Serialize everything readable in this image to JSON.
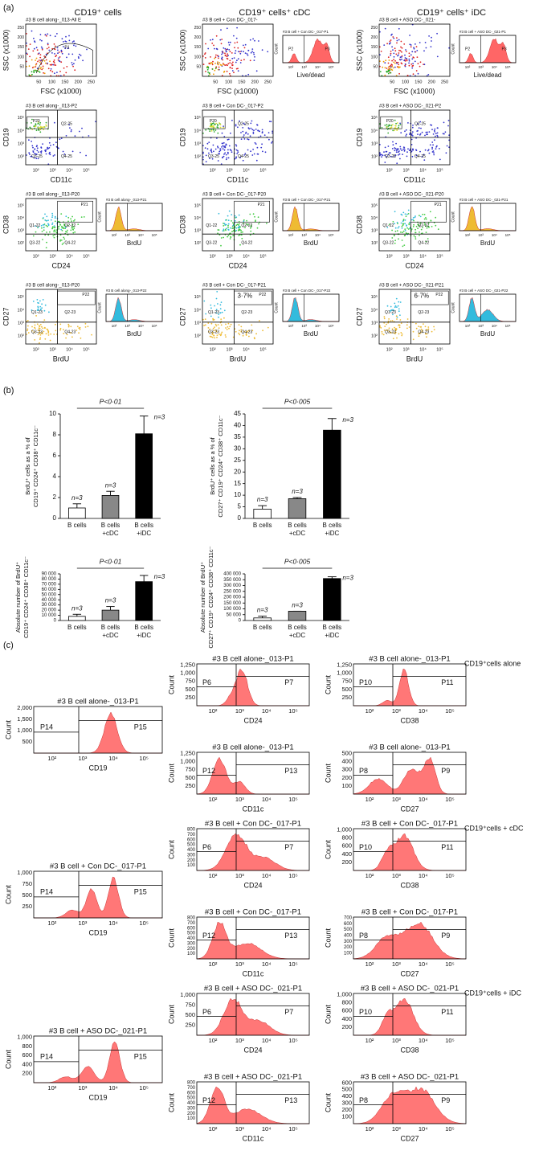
{
  "log_ticks": [
    "10²",
    "10³",
    "10⁴",
    "10⁵"
  ],
  "panel_a": {
    "label": "(a)",
    "columns": [
      "CD19⁺ cells",
      "CD19⁺ cells⁺ cDC",
      "CD19⁺ cells⁺ iDC"
    ],
    "scatter_ticks": [
      50,
      100,
      150,
      200,
      250
    ],
    "rows": [
      [
        {
          "dot": {
            "title": "#3 B cell along-_013-All E",
            "x_label": "FSC (x1000)",
            "y_label": "SSC (x1000)",
            "gates": [
              "P1"
            ]
          }
        },
        {
          "dot": {
            "title": "#3 B cell + Con DC-_017-",
            "x_label": "FSC (x1000)",
            "y_label": "SSC (x1000)"
          },
          "hist": {
            "title": "#3 B cell + Con DC-_017-P1",
            "x_label": "Live/dead",
            "y_label": "Count",
            "gates": [
              "P2",
              "P3"
            ]
          }
        },
        {
          "dot": {
            "title": "#3 B cell + ASO DC-_021-",
            "x_label": "FSC (x1000)",
            "y_label": "SSC (x1000)"
          },
          "hist": {
            "title": "#3 B cell + ASO DC-_021-P1",
            "x_label": "Live/dead",
            "y_label": "Count",
            "gates": [
              "P2",
              "P3"
            ]
          }
        }
      ],
      [
        {
          "dot": {
            "title": "#3 B cell along-_013-P2",
            "x_label": "CD11c",
            "y_label": "CD19",
            "gates": [
              "P20",
              "Q2-25",
              "Q3-25",
              "Q4-25"
            ]
          }
        },
        {
          "dot": {
            "title": "#3 B cell + Con DC-_017-P2",
            "x_label": "CD11c",
            "y_label": "CD19",
            "gates": [
              "P20",
              "Q2-25",
              "Q3-25",
              "Q4-25"
            ]
          }
        },
        {
          "dot": {
            "title": "#3 B cell + ASO DC-_021-P2",
            "x_label": "CD11c",
            "y_label": "CD19",
            "gates": [
              "P20",
              "Q2-25",
              "Q3-25",
              "Q4-25"
            ]
          }
        }
      ],
      [
        {
          "dot": {
            "title": "#3 B cell along-_013-P20",
            "x_label": "CD24",
            "y_label": "CD38",
            "gates": [
              "P21",
              "Q1-22",
              "Q2-22",
              "Q3-22",
              "Q4-22"
            ]
          },
          "hist": {
            "title": "#3 B cell along-_013-P21",
            "x_label": "BrdU",
            "y_label": "Count"
          }
        },
        {
          "dot": {
            "title": "#3 B cell + Con DC-_017-P20",
            "x_label": "CD24",
            "y_label": "CD38",
            "gates": [
              "P21",
              "Q1-22",
              "Q2-22",
              "Q3-22",
              "Q4-22"
            ]
          },
          "hist": {
            "title": "#3 B cell + Con DC-_017-P21",
            "x_label": "BrdU",
            "y_label": "Count"
          }
        },
        {
          "dot": {
            "title": "#3 B cell + ASO DC-_021-P20",
            "x_label": "CD24",
            "y_label": "CD38",
            "gates": [
              "P21",
              "Q1-22",
              "Q2-22",
              "Q3-22",
              "Q4-22"
            ]
          },
          "hist": {
            "title": "#3 B cell + ASO DC-_021-P21",
            "x_label": "BrdU",
            "y_label": "Count"
          }
        }
      ],
      [
        {
          "dot": {
            "title": "#3 B cell along-_013-P20",
            "x_label": "BrdU",
            "y_label": "CD27",
            "gates": [
              "P22",
              "Q1-23",
              "Q2-23",
              "Q3-23",
              "Q4-23"
            ]
          },
          "hist": {
            "title": "#3 B cell along-_013-P22",
            "x_label": "BrdU",
            "y_label": "Count"
          }
        },
        {
          "dot": {
            "title": "#3 B cell + Con DC-_017-P21",
            "x_label": "BrdU",
            "y_label": "CD27",
            "gates": [
              "P22",
              "Q1-23",
              "Q2-23",
              "Q3-23",
              "Q4-23"
            ],
            "pct": "3·7%"
          },
          "hist": {
            "title": "#3 B cell + Con DC-_017-P22",
            "x_label": "BrdU",
            "y_label": "Count"
          }
        },
        {
          "dot": {
            "title": "#3 B cell + ASO DC-_021-P21",
            "x_label": "BrdU",
            "y_label": "CD27",
            "gates": [
              "P22",
              "Q1-23",
              "Q2-23",
              "Q3-23",
              "Q4-23"
            ],
            "pct": "6·7%"
          },
          "hist": {
            "title": "#3 B cell + ASO DC-_021-P22",
            "x_label": "BrdU",
            "y_label": "Count"
          }
        }
      ]
    ]
  },
  "panel_b": {
    "label": "(b)"
  },
  "chart_data": [
    {
      "type": "bar",
      "y_label": [
        "BrdU⁺ cells as a % of",
        "CD19⁺ CD24⁺ CD38⁺ CD11c⁻"
      ],
      "categories": [
        [
          "B cells"
        ],
        [
          "B cells",
          "+cDC"
        ],
        [
          "B cells",
          "+iDC"
        ]
      ],
      "values": [
        1.0,
        2.2,
        8.1
      ],
      "errors": [
        0.4,
        0.4,
        1.7
      ],
      "colors": [
        "#ffffff",
        "#888888",
        "#000000"
      ],
      "n_labels": [
        "n=3",
        "n=3",
        "n=3"
      ],
      "annotation": "P<0·01",
      "ylim": [
        0,
        10
      ],
      "yticks": [
        0,
        2,
        4,
        6,
        8,
        10
      ]
    },
    {
      "type": "bar",
      "y_label": [
        "BrdU⁺ cells as a % of",
        "CD27⁺ CD19⁺ CD24⁺ CD38⁺ CD11c⁻"
      ],
      "categories": [
        [
          "B cells"
        ],
        [
          "B cells",
          "+cDC"
        ],
        [
          "B cells",
          "+iDC"
        ]
      ],
      "values": [
        4,
        8.5,
        38
      ],
      "errors": [
        1.5,
        0.5,
        5
      ],
      "colors": [
        "#ffffff",
        "#888888",
        "#000000"
      ],
      "n_labels": [
        "n=3",
        "n=3",
        "n=3"
      ],
      "annotation": "P<0·005",
      "ylim": [
        0,
        45
      ],
      "yticks": [
        0,
        5,
        10,
        15,
        20,
        25,
        30,
        35,
        40,
        45
      ]
    },
    {
      "type": "bar",
      "y_label": [
        "Absolute number of BrdU⁺",
        "CD19⁺ CD24⁺ CD38⁺ CD11c⁻"
      ],
      "categories": [
        [
          "B cells"
        ],
        [
          "B cells",
          "+cDC"
        ],
        [
          "B cells",
          "+iDC"
        ]
      ],
      "values": [
        8000,
        20000,
        75000
      ],
      "errors": [
        4000,
        7000,
        12000
      ],
      "colors": [
        "#ffffff",
        "#888888",
        "#000000"
      ],
      "n_labels": [
        "n=3",
        "n=3",
        "n=3"
      ],
      "annotation": "P<0·01",
      "ylim": [
        0,
        90000
      ],
      "yticks": [
        0,
        {
          "value": 10000,
          "label": "10 000"
        },
        {
          "value": 20000,
          "label": "20 000"
        },
        {
          "value": 30000,
          "label": "30 000"
        },
        {
          "value": 40000,
          "label": "40 000"
        },
        {
          "value": 50000,
          "label": "50 000"
        },
        {
          "value": 60000,
          "label": "60 000"
        },
        {
          "value": 70000,
          "label": "70 000"
        },
        {
          "value": 80000,
          "label": "80 000"
        },
        {
          "value": 90000,
          "label": "90 000"
        }
      ]
    },
    {
      "type": "bar",
      "y_label": [
        "Absolute number of BrdU⁺",
        "CD27⁺ CD19⁺ CD24⁺ CD38⁺ CD11c⁻"
      ],
      "categories": [
        [
          "B cells"
        ],
        [
          "B cells",
          "+cDC"
        ],
        [
          "B cells",
          "+iDC"
        ]
      ],
      "values": [
        22000,
        80000,
        360000
      ],
      "errors": [
        15000,
        0,
        15000
      ],
      "colors": [
        "#ffffff",
        "#888888",
        "#000000"
      ],
      "n_labels": [
        "n=3",
        "n=3",
        "n=3"
      ],
      "annotation": "P<0·005",
      "ylim": [
        0,
        400000
      ],
      "yticks": [
        0,
        {
          "value": 50000,
          "label": "50 000"
        },
        {
          "value": 100000,
          "label": "100 000"
        },
        {
          "value": 150000,
          "label": "150 000"
        },
        {
          "value": 200000,
          "label": "200 000"
        },
        {
          "value": 250000,
          "label": "250 000"
        },
        {
          "value": 300000,
          "label": "300 000"
        },
        {
          "value": 350000,
          "label": "350 000"
        },
        {
          "value": 400000,
          "label": "400 000"
        }
      ]
    }
  ],
  "panel_c": {
    "label": "(c)",
    "y_label": "Count",
    "groups": [
      {
        "label": "CD19⁺cells alone",
        "title": "#3 B cell alone-_013-P1",
        "plots": [
          {
            "x_label": "CD19",
            "y_ticks": [
              "500",
              "1,000",
              "1,500",
              "2,000"
            ],
            "gates": [
              "P14",
              "P15"
            ]
          },
          {
            "x_label": "CD24",
            "y_ticks": [
              "250",
              "500",
              "750",
              "1,000",
              "1,250"
            ],
            "gates": [
              "P6",
              "P7"
            ]
          },
          {
            "x_label": "CD38",
            "y_ticks": [
              "250",
              "500",
              "750",
              "1,000",
              "1,250"
            ],
            "gates": [
              "P10",
              "P11"
            ]
          },
          {
            "x_label": "CD11c",
            "y_ticks": [
              "250",
              "500",
              "750",
              "1,000",
              "1,250"
            ],
            "gates": [
              "P12",
              "P13"
            ]
          },
          {
            "x_label": "CD27",
            "y_ticks": [
              "100",
              "200",
              "300",
              "400",
              "500"
            ],
            "gates": [
              "P8",
              "P9"
            ]
          }
        ]
      },
      {
        "label": "CD19⁺cells + cDC",
        "title": "#3 B cell + Con DC-_017-P1",
        "plots": [
          {
            "x_label": "CD19",
            "y_ticks": [
              "250",
              "500",
              "750",
              "1,000"
            ],
            "gates": [
              "P14",
              "P15"
            ]
          },
          {
            "x_label": "CD24",
            "y_ticks": [
              "100",
              "200",
              "300",
              "400",
              "500",
              "600",
              "700",
              "800"
            ],
            "gates": [
              "P6",
              "P7"
            ]
          },
          {
            "x_label": "CD38",
            "y_ticks": [
              "200",
              "400",
              "600",
              "800",
              "1,000"
            ],
            "gates": [
              "P10",
              "P11"
            ]
          },
          {
            "x_label": "CD11c",
            "y_ticks": [
              "100",
              "200",
              "300",
              "400",
              "500",
              "600",
              "700",
              "800"
            ],
            "gates": [
              "P12",
              "P13"
            ]
          },
          {
            "x_label": "CD27",
            "y_ticks": [
              "100",
              "200",
              "300",
              "400",
              "500",
              "600",
              "700"
            ],
            "gates": [
              "P8",
              "P9"
            ]
          }
        ]
      },
      {
        "label": "CD19⁺cells + iDC",
        "title": "#3 B cell + ASO DC-_021-P1",
        "plots": [
          {
            "x_label": "CD19",
            "y_ticks": [
              "200",
              "400",
              "600",
              "800",
              "1,000"
            ],
            "gates": [
              "P14",
              "P15"
            ]
          },
          {
            "x_label": "CD24",
            "y_ticks": [
              "250",
              "500",
              "750",
              "1,000"
            ],
            "gates": [
              "P6",
              "P7"
            ]
          },
          {
            "x_label": "CD38",
            "y_ticks": [
              "200",
              "400",
              "600",
              "800",
              "1,000"
            ],
            "gates": [
              "P10",
              "P11"
            ]
          },
          {
            "x_label": "CD11c",
            "y_ticks": [
              "100",
              "200",
              "300",
              "400",
              "500",
              "600",
              "700",
              "800"
            ],
            "gates": [
              "P12",
              "P13"
            ]
          },
          {
            "x_label": "CD27",
            "y_ticks": [
              "100",
              "200",
              "300",
              "400",
              "500",
              "600"
            ],
            "gates": [
              "P8",
              "P9"
            ]
          }
        ]
      }
    ]
  }
}
